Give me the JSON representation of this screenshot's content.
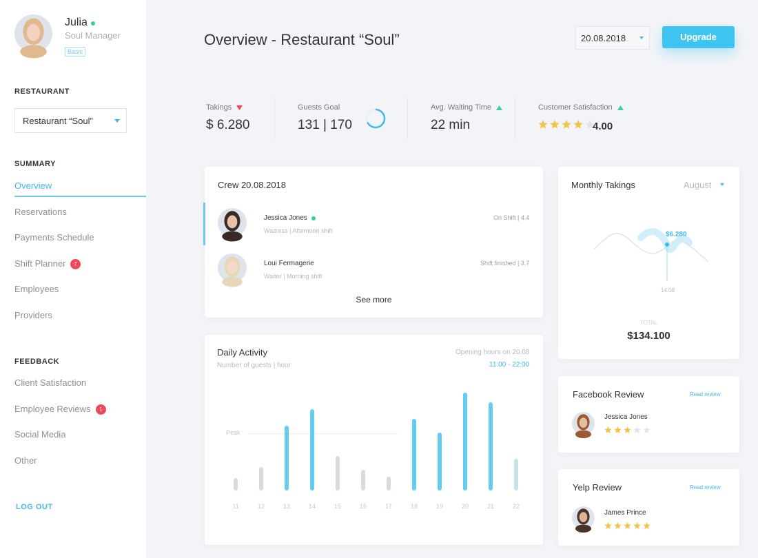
{
  "sidebar": {
    "user": {
      "name": "Julia",
      "role": "Soul Manager",
      "badge": "Basic"
    },
    "restaurant_heading": "RESTAURANT",
    "restaurant_select": "Restaurant “Soul”",
    "summary_heading": "SUMMARY",
    "summary_items": [
      {
        "label": "Overview"
      },
      {
        "label": "Reservations"
      },
      {
        "label": "Payments Schedule"
      },
      {
        "label": "Shift Planner",
        "badge": 7
      },
      {
        "label": "Employees"
      },
      {
        "label": "Providers"
      }
    ],
    "feedback_heading": "FEEDBACK",
    "feedback_items": [
      {
        "label": "Client Satisfaction"
      },
      {
        "label": "Employee Reviews",
        "badge": 1
      },
      {
        "label": "Social Media"
      },
      {
        "label": "Other"
      }
    ],
    "logout": "LOG OUT"
  },
  "header": {
    "title": "Overview - Restaurant “Soul”",
    "date": "20.08.2018",
    "upgrade": "Upgrade"
  },
  "kpis": [
    {
      "label": "Takings",
      "value": "$ 6.280",
      "trend": "down"
    },
    {
      "label": "Guests Goal",
      "value": "131 | 170"
    },
    {
      "label": "Avg. Waiting Time",
      "value": "22 min",
      "trend": "up"
    },
    {
      "label": "Customer Satisfaction",
      "value": "4.00",
      "trend": "up",
      "stars": 4
    }
  ],
  "crew": {
    "title": "Crew 20.08.2018",
    "members": [
      {
        "name": "Jessica Jones",
        "role": "Waitress | Afternoon shift",
        "status": "On Shift | 4.4"
      },
      {
        "name": "Loui Fermagerie",
        "role": "Waiter | Morning shift",
        "status": "Shift finished | 3.7"
      }
    ],
    "see_more": "See more"
  },
  "monthly": {
    "title": "Monthly Takings",
    "month": "August",
    "point_label": "$6.280",
    "point_date": "14.08",
    "total_label": "TOTAL",
    "total": "$134.100"
  },
  "daily_activity": {
    "title": "Daily Activity",
    "subtitle": "Number of guests | hour",
    "hours_label": "Opening hours on 20.08",
    "hours": "11:00 - 22:00",
    "peak_label": "Peak",
    "chart": {
      "type": "bar",
      "categories": [
        "11",
        "12",
        "13",
        "14",
        "15",
        "16",
        "17",
        "18",
        "19",
        "20",
        "21",
        "22"
      ],
      "values": [
        18,
        34,
        94,
        118,
        50,
        30,
        20,
        104,
        84,
        142,
        128,
        46
      ],
      "colors": [
        "#d3d8de",
        "#d3d8de",
        "#52c8f0",
        "#52c8f0",
        "#d3d8de",
        "#d3d8de",
        "#d3d8de",
        "#52c8f0",
        "#52c8f0",
        "#52c8f0",
        "#52c8f0",
        "#c3dbe8"
      ]
    }
  },
  "reviews": [
    {
      "source": "Facebook Review",
      "link": "Read review",
      "name": "Jessica Jones",
      "stars": 3
    },
    {
      "source": "Yelp Review",
      "link": "Read review",
      "name": "James Prince",
      "stars": 5
    }
  ]
}
